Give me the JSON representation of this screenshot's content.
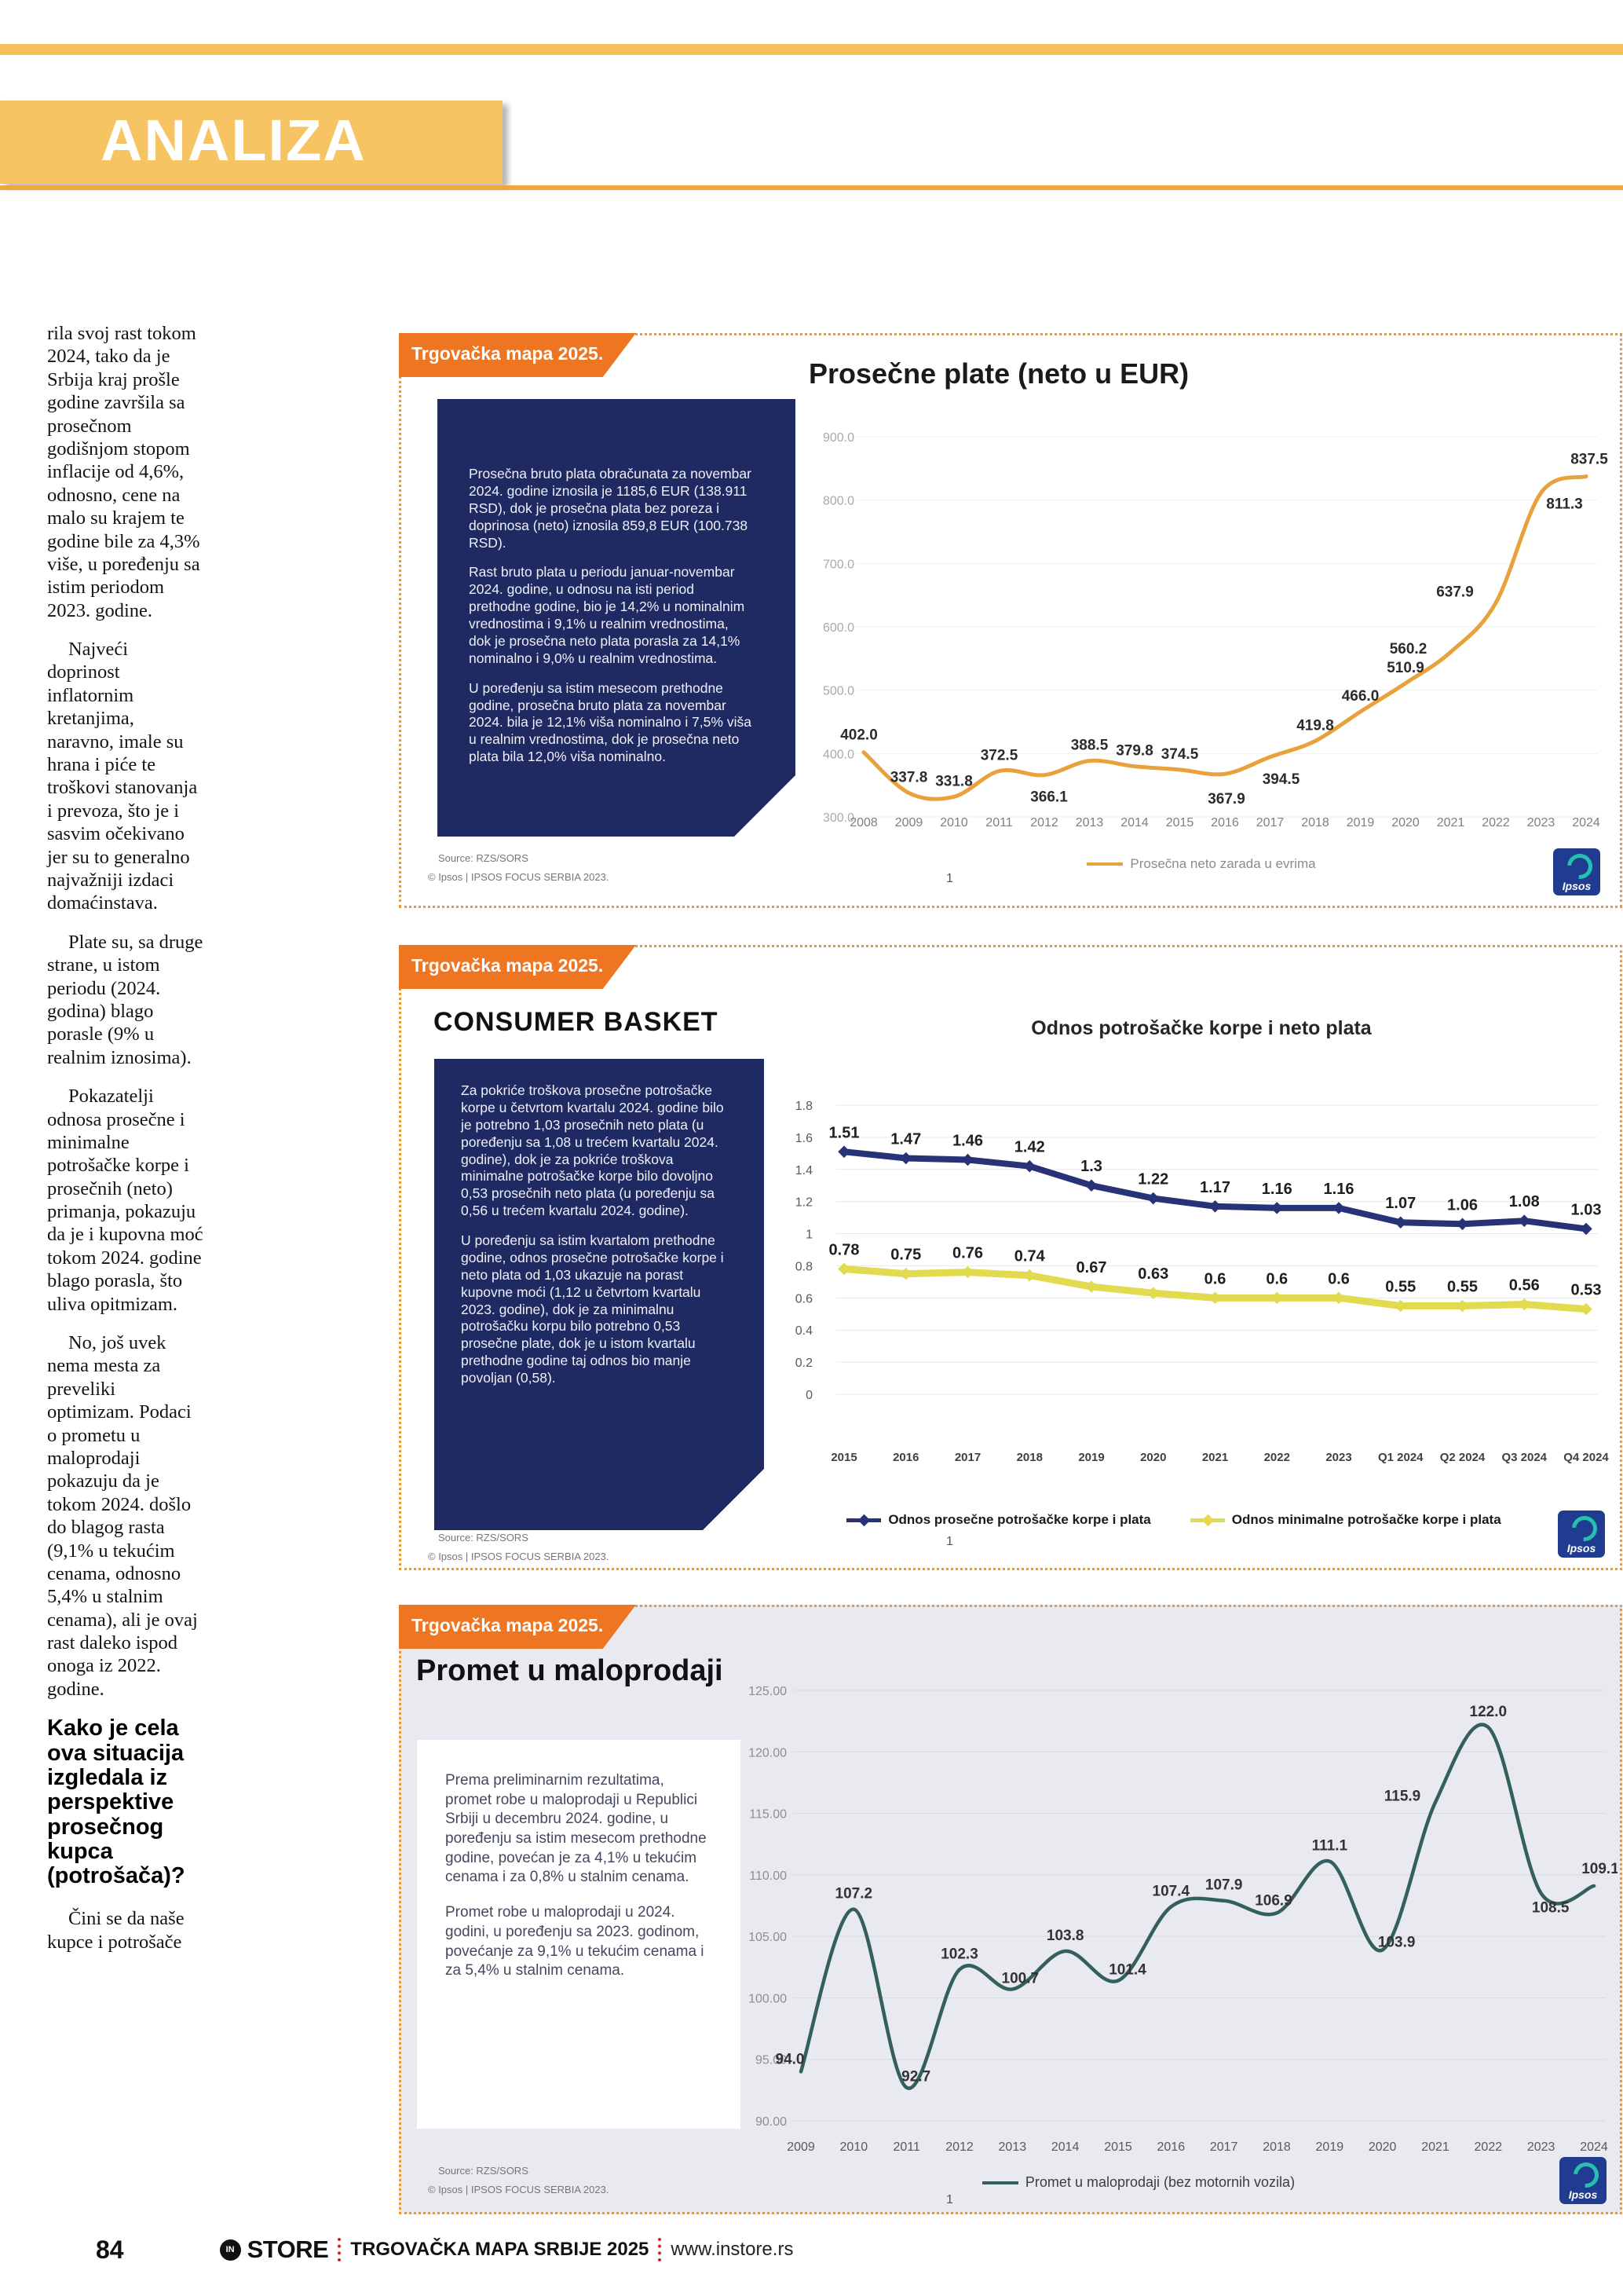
{
  "colors": {
    "band_yellow": "#F7C464",
    "ribbon_orange": "#EE7623",
    "navy_box": "#1F2A63",
    "chart1_line": "#E9A13B",
    "chart2_navy": "#283377",
    "chart2_yellow": "#E2DA4F",
    "chart3_teal": "#33605E",
    "footer_red": "#D2232A",
    "ipsos_blue": "#1F3C90"
  },
  "header": {
    "section_title": "ANALIZA"
  },
  "article": {
    "paragraphs": [
      "rila svoj rast tokom 2024, tako da je Srbija kraj prošle godine završila sa prosečnom godišnjom stopom inflacije od 4,6%, odnosno, cene na malo su krajem te godine bile za 4,3% više, u poređenju sa istim periodom 2023. godine.",
      "Najveći doprinost inflatornim kretanjima, naravno, imale su hrana i piće te troškovi stanovanja i prevoza, što je i sasvim očekivano jer su to generalno najvažniji izdaci domaćinstava.",
      "Plate su, sa druge strane, u istom periodu (2024. godina) blago porasle (9% u realnim iznosima).",
      "Pokazatelji odnosa prosečne i minimalne potrošačke korpe i prosečnih (neto) primanja, pokazuju da je i kupovna moć tokom 2024. godine blago porasla, što uliva opitmizam.",
      "No, još uvek nema mesta za preveliki optimizam. Podaci o prometu u maloprodaji pokazuju da je tokom 2024. došlo do blagog rasta (9,1% u tekućim cenama, odnosno 5,4% u stalnim cenama), ali je ovaj rast daleko ispod onoga iz 2022. godine."
    ],
    "subheading": "Kako je cela ova situacija izgledala iz perspektive prosečnog kupca (potrošača)?",
    "closing_paragraph": "Čini se da naše kupce i potrošače"
  },
  "panels": [
    {
      "ribbon": "Trgovačka mapa 2025.",
      "box_paragraphs": [
        "Prosečna bruto plata obračunata za novembar 2024. godine iznosila je 1185,6 EUR (138.911 RSD), dok je prosečna plata bez poreza i doprinosa (neto) iznosila 859,8 EUR (100.738 RSD).",
        "Rast bruto plata u periodu januar-novembar 2024. godine, u odnosu na isti period prethodne godine, bio je 14,2% u nominalnim vrednostima i 9,1% u realnim vrednostima, dok je prosečna neto plata porasla za 14,1% nominalno i 9,0% u realnim vrednostima.",
        "U poređenju sa istim mesecom prethodne godine, prosečna bruto plata za novembar 2024. bila je 12,1% viša nominalno i 7,5% viša u realnim vrednostima, dok je prosečna neto plata bila 12,0% viša nominalno."
      ],
      "source": "Source: RZS/SORS",
      "copyright": "© Ipsos | IPSOS FOCUS SERBIA 2023.",
      "slide_number": "1",
      "logo_text": "Ipsos"
    },
    {
      "ribbon": "Trgovačka mapa 2025.",
      "heading": "CONSUMER BASKET",
      "box_paragraphs": [
        "Za pokriće troškova prosečne potrošačke korpe u četvrtom kvartalu 2024. godine bilo je potrebno 1,03 prosečnih neto plata (u poređenju sa 1,08 u trećem kvartalu 2024. godine), dok je za pokriće troškova minimalne potrošačke korpe bilo dovoljno 0,53 prosečnih neto plata (u poređenju sa 0,56 u trećem kvartalu 2024. godine).",
        "U poređenju sa istim kvartalom prethodne godine, odnos prosečne potrošačke korpe i neto plata od 1,03 ukazuje na porast kupovne moći (1,12 u četvrtom kvartalu 2023. godine), dok je za minimalnu potrošačku korpu bilo potrebno 0,53 prosečne plate, dok je u istom kvartalu prethodne godine taj odnos bio manje povoljan (0,58)."
      ],
      "source": "Source: RZS/SORS",
      "copyright": "© Ipsos | IPSOS FOCUS SERBIA 2023.",
      "slide_number": "1",
      "logo_text": "Ipsos"
    },
    {
      "ribbon": "Trgovačka mapa 2025.",
      "heading": "Promet u maloprodaji",
      "box_paragraphs": [
        "Prema preliminarnim rezultatima, promet robe u maloprodaji u Republici Srbiji u decembru 2024. godine, u poređenju sa istim mesecom prethodne godine, povećan je za 4,1% u tekućim cenama i za 0,8% u stalnim cenama.",
        "Promet robe u maloprodaji u 2024. godini, u poređenju sa 2023. godinom, povećanje za 9,1% u tekućim cenama i za 5,4% u stalnim cenama."
      ],
      "source": "Source: RZS/SORS",
      "copyright": "© Ipsos | IPSOS FOCUS SERBIA 2023.",
      "slide_number": "1",
      "logo_text": "Ipsos"
    }
  ],
  "chart_data": [
    {
      "type": "line",
      "title": "Prosečne plate (neto u EUR)",
      "categories": [
        "2008",
        "2009",
        "2010",
        "2011",
        "2012",
        "2013",
        "2014",
        "2015",
        "2016",
        "2017",
        "2018",
        "2019",
        "2020",
        "2021",
        "2022",
        "2023",
        "2024"
      ],
      "values": [
        402.0,
        337.8,
        331.8,
        372.5,
        366.1,
        388.5,
        379.8,
        374.5,
        367.9,
        394.5,
        419.8,
        466.0,
        510.9,
        560.2,
        637.9,
        811.3,
        837.5
      ],
      "labels": [
        "402.0",
        "337.8",
        "331.8",
        "372.5",
        "366.1",
        "388.5",
        "379.8",
        "374.5",
        "367.9",
        "394.5",
        "419.8",
        "466.0",
        "510.9",
        "560.2",
        "637.9",
        "811.3",
        "837.5"
      ],
      "ylim": [
        300,
        900
      ],
      "yticks": [
        "900.0",
        "800.0",
        "700.0",
        "600.0",
        "500.0",
        "400.0",
        "300.0"
      ],
      "grid": true,
      "legend": "Prosečna neto zarada u evrima",
      "legend_position": "bottom",
      "line_color": "#E9A13B"
    },
    {
      "type": "line",
      "title": "Odnos potrošačke korpe i neto plata",
      "categories": [
        "2015",
        "2016",
        "2017",
        "2018",
        "2019",
        "2020",
        "2021",
        "2022",
        "2023",
        "Q1 2024",
        "Q2 2024",
        "Q3 2024",
        "Q4 2024"
      ],
      "series": [
        {
          "name": "Odnos prosečne potrošačke korpe i plata",
          "color": "#283377",
          "values": [
            1.51,
            1.47,
            1.46,
            1.42,
            1.3,
            1.22,
            1.17,
            1.16,
            1.16,
            1.07,
            1.06,
            1.08,
            1.03
          ],
          "labels": [
            "1.51",
            "1.47",
            "1.46",
            "1.42",
            "1.3",
            "1.22",
            "1.17",
            "1.16",
            "1.16",
            "1.07",
            "1.06",
            "1.08",
            "1.03"
          ]
        },
        {
          "name": "Odnos minimalne potrošačke korpe i plata",
          "color": "#E2DA4F",
          "values": [
            0.78,
            0.75,
            0.76,
            0.74,
            0.67,
            0.63,
            0.6,
            0.6,
            0.6,
            0.55,
            0.55,
            0.56,
            0.53
          ],
          "labels": [
            "0.78",
            "0.75",
            "0.76",
            "0.74",
            "0.67",
            "0.63",
            "0.6",
            "0.6",
            "0.6",
            "0.55",
            "0.55",
            "0.56",
            "0.53"
          ]
        }
      ],
      "ylim": [
        0,
        1.8
      ],
      "yticks": [
        "1.8",
        "1.6",
        "1.4",
        "1.2",
        "1",
        "0.8",
        "0.6",
        "0.4",
        "0.2",
        "0"
      ],
      "grid": true,
      "legend_position": "bottom"
    },
    {
      "type": "line",
      "title": "Promet u maloprodaji",
      "categories": [
        "2009",
        "2010",
        "2011",
        "2012",
        "2013",
        "2014",
        "2015",
        "2016",
        "2017",
        "2018",
        "2019",
        "2020",
        "2021",
        "2022",
        "2023",
        "2024"
      ],
      "values": [
        94.0,
        107.2,
        92.7,
        102.3,
        100.7,
        103.8,
        101.4,
        107.4,
        107.9,
        106.9,
        111.1,
        103.9,
        115.9,
        122.0,
        108.5,
        109.1
      ],
      "labels": [
        "94.0",
        "107.2",
        "92.7",
        "102.3",
        "100.7",
        "103.8",
        "101.4",
        "107.4",
        "107.9",
        "106.9",
        "111.1",
        "103.9",
        "115.9",
        "122.0",
        "108.5",
        "109.1"
      ],
      "ylim": [
        90,
        125
      ],
      "yticks": [
        "125.00",
        "120.00",
        "115.00",
        "110.00",
        "105.00",
        "100.00",
        "95.00",
        "90.00"
      ],
      "grid": true,
      "legend": "Promet u maloprodaji (bez motornih vozila)",
      "legend_position": "bottom",
      "line_color": "#33605E"
    }
  ],
  "footer": {
    "page_number": "84",
    "logo_in": "IN",
    "logo_store": "STORE",
    "publication": "TRGOVAČKA MAPA SRBIJE 2025",
    "website": "www.instore.rs"
  }
}
